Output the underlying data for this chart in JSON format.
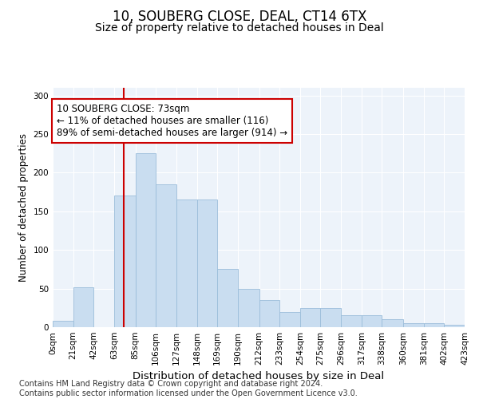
{
  "title": "10, SOUBERG CLOSE, DEAL, CT14 6TX",
  "subtitle": "Size of property relative to detached houses in Deal",
  "xlabel": "Distribution of detached houses by size in Deal",
  "ylabel": "Number of detached properties",
  "bar_color": "#c9ddf0",
  "bar_edge_color": "#9bbdda",
  "bar_heights": [
    8,
    52,
    0,
    170,
    225,
    185,
    165,
    165,
    75,
    50,
    35,
    20,
    25,
    25,
    15,
    15,
    10,
    5,
    5,
    3
  ],
  "bin_edges": [
    0,
    21,
    42,
    63,
    85,
    106,
    127,
    148,
    169,
    190,
    212,
    233,
    254,
    275,
    296,
    317,
    338,
    360,
    381,
    402,
    423
  ],
  "tick_labels": [
    "0sqm",
    "21sqm",
    "42sqm",
    "63sqm",
    "85sqm",
    "106sqm",
    "127sqm",
    "148sqm",
    "169sqm",
    "190sqm",
    "212sqm",
    "233sqm",
    "254sqm",
    "275sqm",
    "296sqm",
    "317sqm",
    "338sqm",
    "360sqm",
    "381sqm",
    "402sqm",
    "423sqm"
  ],
  "vline_x": 73,
  "vline_color": "#cc0000",
  "annotation_text": "10 SOUBERG CLOSE: 73sqm\n← 11% of detached houses are smaller (116)\n89% of semi-detached houses are larger (914) →",
  "annotation_box_color": "#cc0000",
  "ylim": [
    0,
    310
  ],
  "yticks": [
    0,
    50,
    100,
    150,
    200,
    250,
    300
  ],
  "background_color": "#edf3fa",
  "footer_text": "Contains HM Land Registry data © Crown copyright and database right 2024.\nContains public sector information licensed under the Open Government Licence v3.0.",
  "title_fontsize": 12,
  "subtitle_fontsize": 10,
  "xlabel_fontsize": 9.5,
  "ylabel_fontsize": 8.5,
  "tick_fontsize": 7.5,
  "annotation_fontsize": 8.5,
  "footer_fontsize": 7
}
